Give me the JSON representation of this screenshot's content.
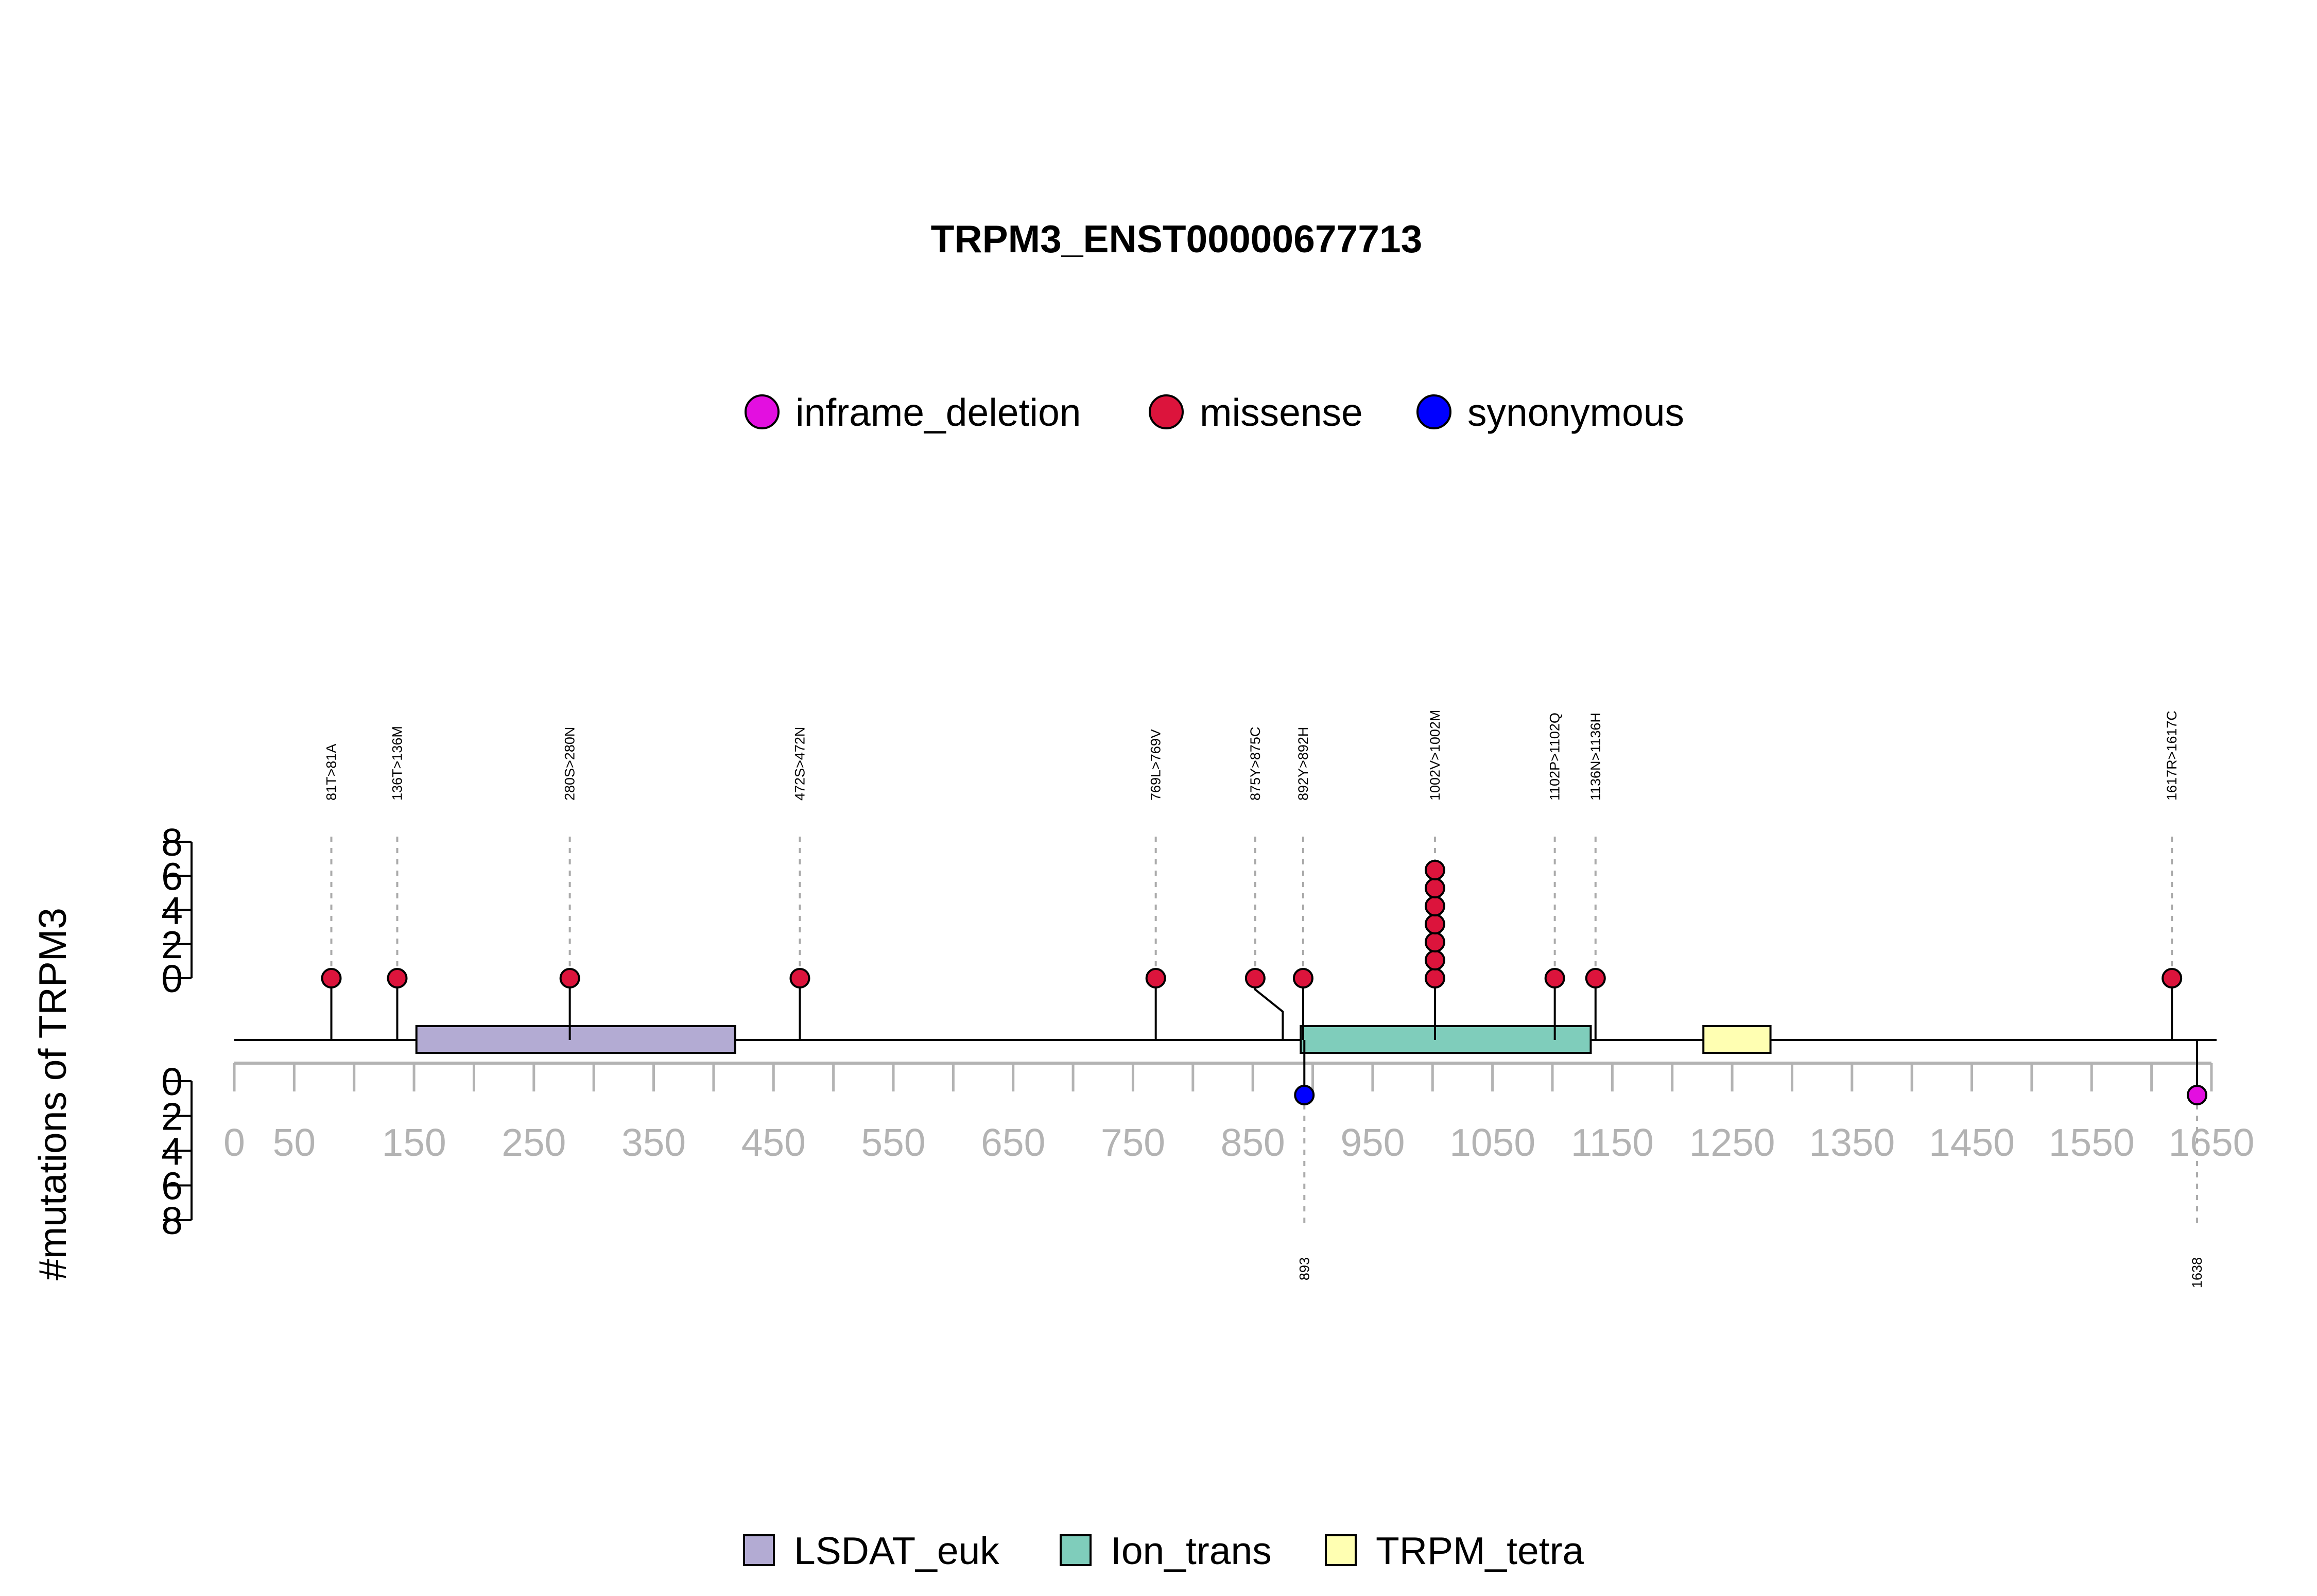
{
  "chart_data": {
    "type": "lollipop",
    "title": "TRPM3_ENST00000677713",
    "ylabel": "#mutations of TRPM3",
    "protein_length": 1650,
    "xlim": [
      0,
      1650
    ],
    "ylim_top": [
      0,
      8
    ],
    "ylim_bottom": [
      0,
      8
    ],
    "x_ticks": [
      0,
      50,
      150,
      250,
      350,
      450,
      550,
      650,
      750,
      850,
      950,
      1050,
      1150,
      1250,
      1350,
      1450,
      1550,
      1650
    ],
    "x_minor_ticks": [
      0,
      50,
      100,
      150,
      200,
      250,
      300,
      350,
      400,
      450,
      500,
      550,
      600,
      650,
      700,
      750,
      800,
      850,
      900,
      950,
      1000,
      1050,
      1100,
      1150,
      1200,
      1250,
      1300,
      1350,
      1400,
      1450,
      1500,
      1550,
      1600,
      1650
    ],
    "y_ticks": [
      0,
      2,
      4,
      6,
      8
    ],
    "variant_legend": [
      {
        "name": "inframe_deletion",
        "color": "#E30FE0"
      },
      {
        "name": "missense",
        "color": "#DC143C"
      },
      {
        "name": "synonymous",
        "color": "#0000FF"
      }
    ],
    "domain_legend": [
      {
        "name": "LSDAT_euk",
        "color": "#B3ABD3"
      },
      {
        "name": "Ion_trans",
        "color": "#7FCDBB"
      },
      {
        "name": "TRPM_tetra",
        "color": "#FFFFB2"
      }
    ],
    "domains": [
      {
        "name": "LSDAT_euk",
        "start": 152,
        "end": 418,
        "color": "#B3ABD3"
      },
      {
        "name": "Ion_trans",
        "start": 890,
        "end": 1132,
        "color": "#7FCDBB"
      },
      {
        "name": "TRPM_tetra",
        "start": 1226,
        "end": 1282,
        "color": "#FFFFB2"
      }
    ],
    "mutations_top": [
      {
        "pos": 81,
        "label": "81T>81A",
        "count": 1,
        "type": "missense"
      },
      {
        "pos": 136,
        "label": "136T>136M",
        "count": 1,
        "type": "missense"
      },
      {
        "pos": 280,
        "label": "280S>280N",
        "count": 1,
        "type": "missense"
      },
      {
        "pos": 472,
        "label": "472S>472N",
        "count": 1,
        "type": "missense"
      },
      {
        "pos": 769,
        "label": "769L>769V",
        "count": 1,
        "type": "missense"
      },
      {
        "pos": 875,
        "label": "875Y>875C",
        "count": 1,
        "type": "missense"
      },
      {
        "pos": 892,
        "label": "892Y>892H",
        "count": 1,
        "type": "missense"
      },
      {
        "pos": 1002,
        "label": "1002V>1002M",
        "count": 7,
        "type": "missense"
      },
      {
        "pos": 1102,
        "label": "1102P>1102Q",
        "count": 1,
        "type": "missense"
      },
      {
        "pos": 1136,
        "label": "1136N>1136H",
        "count": 1,
        "type": "missense"
      },
      {
        "pos": 1617,
        "label": "1617R>1617C",
        "count": 1,
        "type": "missense"
      }
    ],
    "mutations_bottom": [
      {
        "pos": 893,
        "label": "893",
        "count": 1,
        "type": "synonymous"
      },
      {
        "pos": 1638,
        "label": "1638",
        "count": 1,
        "type": "inframe_deletion"
      }
    ]
  }
}
